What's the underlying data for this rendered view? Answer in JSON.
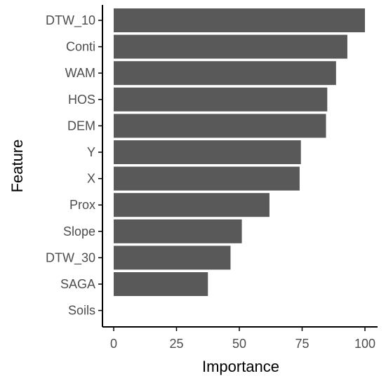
{
  "chart_data": {
    "type": "bar",
    "orientation": "horizontal",
    "xlabel": "Importance",
    "ylabel": "Feature",
    "categories": [
      "DTW_10",
      "Conti",
      "WAM",
      "HOS",
      "DEM",
      "Y",
      "X",
      "Prox",
      "Slope",
      "DTW_30",
      "SAGA",
      "Soils"
    ],
    "values": [
      100,
      93,
      88.5,
      85,
      84.5,
      74.5,
      74,
      62,
      51,
      46.5,
      37.5,
      0
    ],
    "xlim": [
      0,
      100
    ],
    "xticks": [
      0,
      25,
      50,
      75,
      100
    ],
    "grid": false,
    "legend": "none",
    "bar_color": "#595959",
    "axis_color": "#000000",
    "tick_label_color": "#4d4d4d"
  }
}
